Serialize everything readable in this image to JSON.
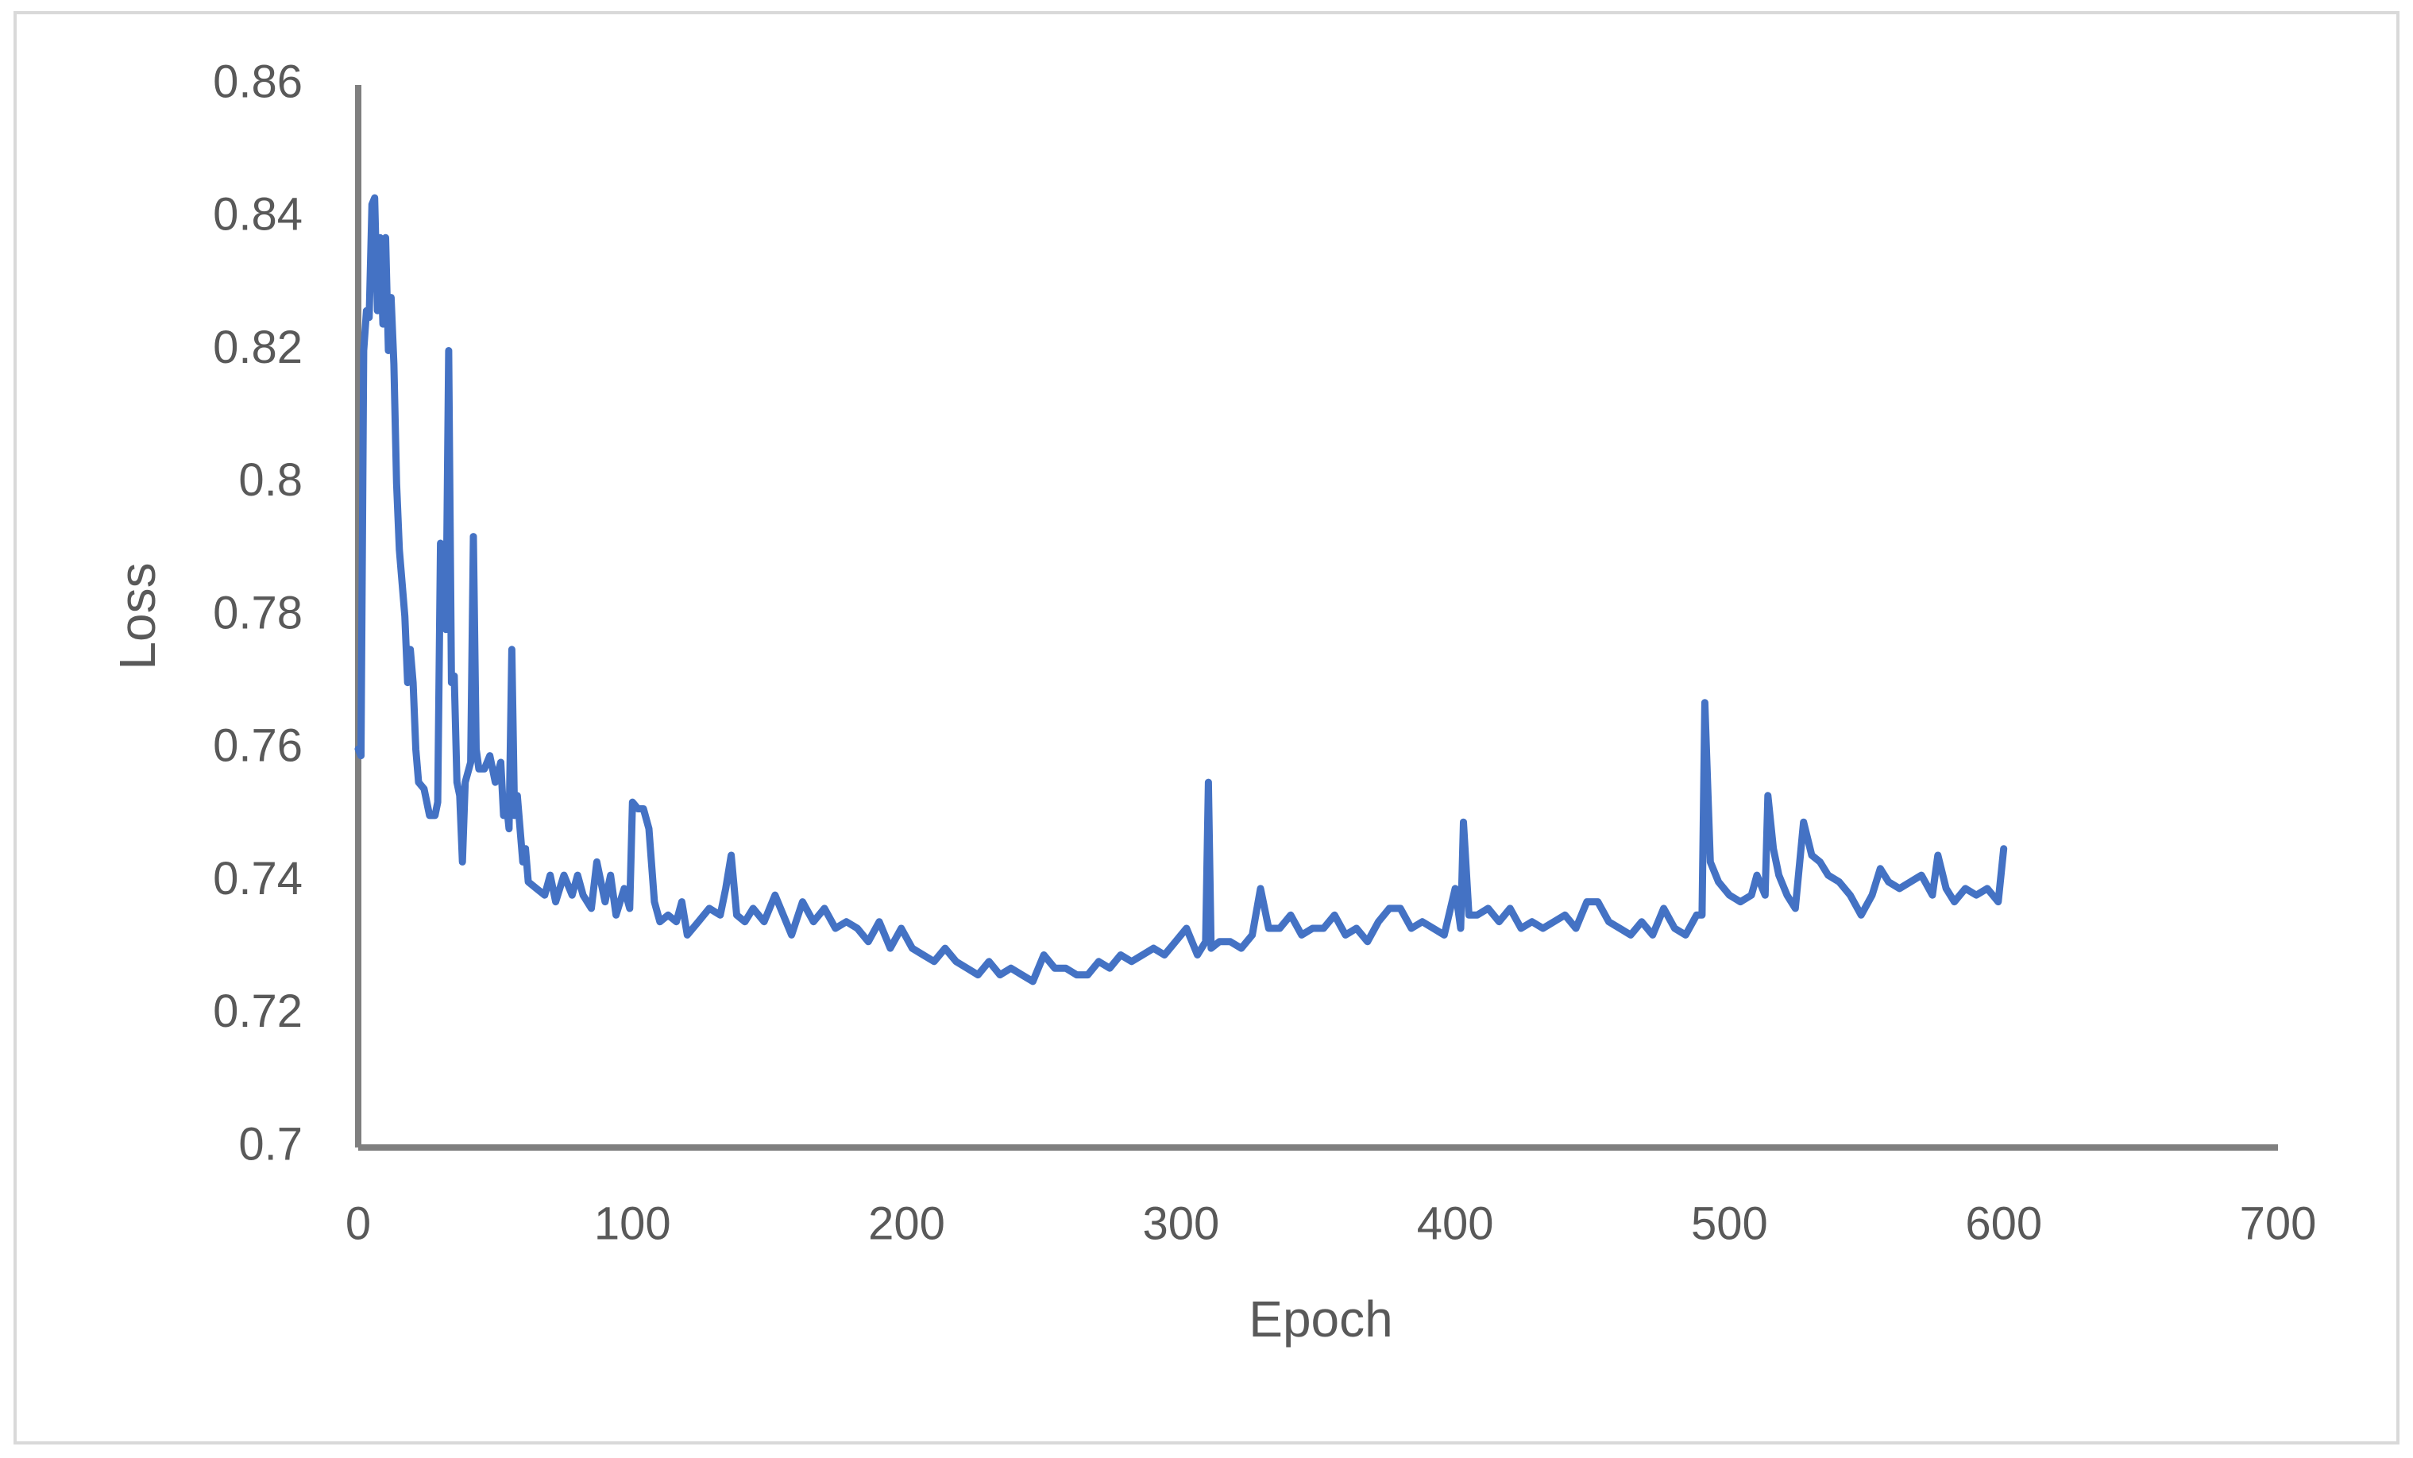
{
  "chart_data": {
    "type": "line",
    "xlabel": "Epoch",
    "ylabel": "Loss",
    "xlim": [
      0,
      700
    ],
    "xticks": [
      0,
      100,
      200,
      300,
      400,
      500,
      600,
      700
    ],
    "ylim": [
      0.7,
      0.86
    ],
    "yticks": [
      0.7,
      0.72,
      0.74,
      0.76,
      0.78,
      0.8,
      0.82,
      0.84,
      0.86
    ],
    "grid": false,
    "color": "#4472c4",
    "x": [
      0,
      1,
      2,
      3,
      4,
      5,
      6,
      7,
      8,
      9,
      10,
      11,
      12,
      13,
      14,
      15,
      17,
      18,
      19,
      20,
      21,
      22,
      24,
      26,
      28,
      29,
      30,
      31,
      32,
      33,
      34,
      35,
      36,
      37,
      38,
      39,
      41,
      42,
      43,
      44,
      46,
      48,
      50,
      52,
      53,
      54,
      55,
      56,
      57,
      58,
      60,
      61,
      62,
      65,
      68,
      70,
      72,
      75,
      78,
      80,
      82,
      85,
      87,
      90,
      92,
      94,
      97,
      99,
      100,
      102,
      104,
      106,
      108,
      110,
      113,
      116,
      118,
      120,
      124,
      128,
      132,
      134,
      136,
      138,
      141,
      144,
      148,
      152,
      155,
      158,
      162,
      166,
      170,
      174,
      178,
      182,
      186,
      190,
      194,
      198,
      202,
      206,
      210,
      214,
      218,
      222,
      226,
      230,
      234,
      238,
      242,
      246,
      250,
      254,
      258,
      262,
      266,
      270,
      274,
      278,
      282,
      286,
      290,
      294,
      298,
      302,
      306,
      309,
      310,
      311,
      314,
      318,
      322,
      326,
      329,
      332,
      336,
      340,
      344,
      348,
      352,
      356,
      360,
      364,
      368,
      372,
      376,
      380,
      384,
      388,
      392,
      396,
      400,
      402,
      403,
      405,
      408,
      412,
      416,
      420,
      424,
      428,
      432,
      436,
      440,
      444,
      448,
      452,
      456,
      460,
      464,
      468,
      472,
      476,
      480,
      484,
      488,
      490,
      491,
      493,
      496,
      500,
      504,
      508,
      510,
      513,
      514,
      516,
      518,
      521,
      524,
      527,
      530,
      533,
      536,
      540,
      544,
      548,
      552,
      555,
      558,
      562,
      566,
      570,
      574,
      576,
      579,
      582,
      586,
      590,
      594,
      598,
      600
    ],
    "values": [
      0.76,
      0.759,
      0.82,
      0.826,
      0.825,
      0.842,
      0.843,
      0.826,
      0.837,
      0.824,
      0.837,
      0.82,
      0.828,
      0.818,
      0.8,
      0.79,
      0.78,
      0.77,
      0.775,
      0.77,
      0.76,
      0.755,
      0.754,
      0.75,
      0.75,
      0.752,
      0.791,
      0.785,
      0.778,
      0.82,
      0.77,
      0.771,
      0.755,
      0.753,
      0.743,
      0.755,
      0.758,
      0.792,
      0.76,
      0.757,
      0.757,
      0.759,
      0.755,
      0.758,
      0.75,
      0.752,
      0.748,
      0.775,
      0.75,
      0.753,
      0.743,
      0.745,
      0.74,
      0.739,
      0.738,
      0.741,
      0.737,
      0.741,
      0.738,
      0.741,
      0.738,
      0.736,
      0.743,
      0.737,
      0.741,
      0.735,
      0.739,
      0.736,
      0.752,
      0.751,
      0.751,
      0.748,
      0.737,
      0.734,
      0.735,
      0.734,
      0.737,
      0.732,
      0.734,
      0.736,
      0.735,
      0.739,
      0.744,
      0.735,
      0.734,
      0.736,
      0.734,
      0.738,
      0.735,
      0.732,
      0.737,
      0.734,
      0.736,
      0.733,
      0.734,
      0.733,
      0.731,
      0.734,
      0.73,
      0.733,
      0.73,
      0.729,
      0.728,
      0.73,
      0.728,
      0.727,
      0.726,
      0.728,
      0.726,
      0.727,
      0.726,
      0.725,
      0.729,
      0.727,
      0.727,
      0.726,
      0.726,
      0.728,
      0.727,
      0.729,
      0.728,
      0.729,
      0.73,
      0.729,
      0.731,
      0.733,
      0.729,
      0.731,
      0.755,
      0.73,
      0.731,
      0.731,
      0.73,
      0.732,
      0.739,
      0.733,
      0.733,
      0.735,
      0.732,
      0.733,
      0.733,
      0.735,
      0.732,
      0.733,
      0.731,
      0.734,
      0.736,
      0.736,
      0.733,
      0.734,
      0.733,
      0.732,
      0.739,
      0.733,
      0.749,
      0.735,
      0.735,
      0.736,
      0.734,
      0.736,
      0.733,
      0.734,
      0.733,
      0.734,
      0.735,
      0.733,
      0.737,
      0.737,
      0.734,
      0.733,
      0.732,
      0.734,
      0.732,
      0.736,
      0.733,
      0.732,
      0.735,
      0.735,
      0.767,
      0.743,
      0.74,
      0.738,
      0.737,
      0.738,
      0.741,
      0.738,
      0.753,
      0.745,
      0.741,
      0.738,
      0.736,
      0.749,
      0.744,
      0.743,
      0.741,
      0.74,
      0.738,
      0.735,
      0.738,
      0.742,
      0.74,
      0.739,
      0.74,
      0.741,
      0.738,
      0.744,
      0.739,
      0.737,
      0.739,
      0.738,
      0.739,
      0.737,
      0.745
    ]
  }
}
